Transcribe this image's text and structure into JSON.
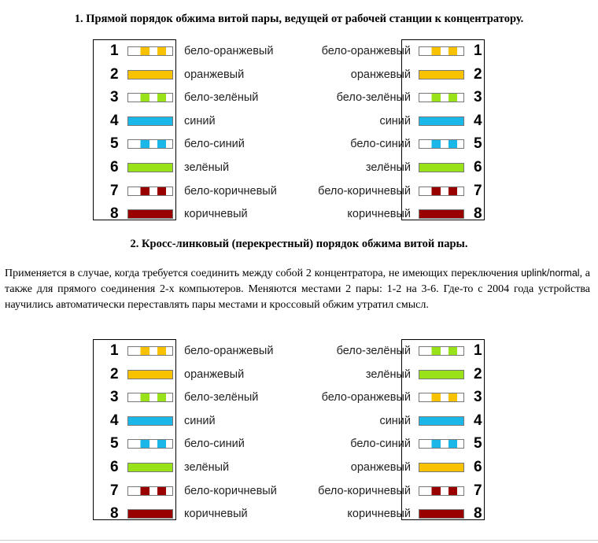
{
  "headings": {
    "h1": "1. Прямой порядок обжима витой пары, ведущей от рабочей станции к концентратору.",
    "h2": "2. Кросс-линковый (перекрестный) порядок обжима витой пары."
  },
  "paragraph": {
    "p1": "Применяется в случае, когда требуется соединить между собой 2 концентратора, не имеющих переключения ",
    "p_small": "uplink/normal",
    "p2": ", а также для прямого соединения 2-х компьютеров. Меняются местами 2 пары: 1-2 на 3-6. Где-то с 2004 года устройства научились автоматически переставлять пары местами и кроссовый обжим утратил смысл."
  },
  "colors": {
    "orange": "#f9c200",
    "green": "#99e21a",
    "blue": "#1ab7e8",
    "brown": "#990000",
    "white": "#ffffff"
  },
  "straight": {
    "left": [
      {
        "num": "1",
        "label": "бело-оранжевый",
        "color": "orange",
        "striped": true
      },
      {
        "num": "2",
        "label": "оранжевый",
        "color": "orange",
        "striped": false
      },
      {
        "num": "3",
        "label": "бело-зелёный",
        "color": "green",
        "striped": true
      },
      {
        "num": "4",
        "label": "синий",
        "color": "blue",
        "striped": false
      },
      {
        "num": "5",
        "label": "бело-синий",
        "color": "blue",
        "striped": true
      },
      {
        "num": "6",
        "label": "зелёный",
        "color": "green",
        "striped": false
      },
      {
        "num": "7",
        "label": "бело-коричневый",
        "color": "brown",
        "striped": true
      },
      {
        "num": "8",
        "label": "коричневый",
        "color": "brown",
        "striped": false
      }
    ],
    "right": [
      {
        "num": "1",
        "label": "бело-оранжевый",
        "color": "orange",
        "striped": true
      },
      {
        "num": "2",
        "label": "оранжевый",
        "color": "orange",
        "striped": false
      },
      {
        "num": "3",
        "label": "бело-зелёный",
        "color": "green",
        "striped": true
      },
      {
        "num": "4",
        "label": "синий",
        "color": "blue",
        "striped": false
      },
      {
        "num": "5",
        "label": "бело-синий",
        "color": "blue",
        "striped": true
      },
      {
        "num": "6",
        "label": "зелёный",
        "color": "green",
        "striped": false
      },
      {
        "num": "7",
        "label": "бело-коричневый",
        "color": "brown",
        "striped": true
      },
      {
        "num": "8",
        "label": "коричневый",
        "color": "brown",
        "striped": false
      }
    ]
  },
  "cross": {
    "left": [
      {
        "num": "1",
        "label": "бело-оранжевый",
        "color": "orange",
        "striped": true
      },
      {
        "num": "2",
        "label": "оранжевый",
        "color": "orange",
        "striped": false
      },
      {
        "num": "3",
        "label": "бело-зелёный",
        "color": "green",
        "striped": true
      },
      {
        "num": "4",
        "label": "синий",
        "color": "blue",
        "striped": false
      },
      {
        "num": "5",
        "label": "бело-синий",
        "color": "blue",
        "striped": true
      },
      {
        "num": "6",
        "label": "зелёный",
        "color": "green",
        "striped": false
      },
      {
        "num": "7",
        "label": "бело-коричневый",
        "color": "brown",
        "striped": true
      },
      {
        "num": "8",
        "label": "коричневый",
        "color": "brown",
        "striped": false
      }
    ],
    "right": [
      {
        "num": "1",
        "label": "бело-зелёный",
        "color": "green",
        "striped": true
      },
      {
        "num": "2",
        "label": "зелёный",
        "color": "green",
        "striped": false
      },
      {
        "num": "3",
        "label": "бело-оранжевый",
        "color": "orange",
        "striped": true
      },
      {
        "num": "4",
        "label": "синий",
        "color": "blue",
        "striped": false
      },
      {
        "num": "5",
        "label": "бело-синий",
        "color": "blue",
        "striped": true
      },
      {
        "num": "6",
        "label": "оранжевый",
        "color": "orange",
        "striped": false
      },
      {
        "num": "7",
        "label": "бело-коричневый",
        "color": "brown",
        "striped": true
      },
      {
        "num": "8",
        "label": "коричневый",
        "color": "brown",
        "striped": false
      }
    ]
  }
}
